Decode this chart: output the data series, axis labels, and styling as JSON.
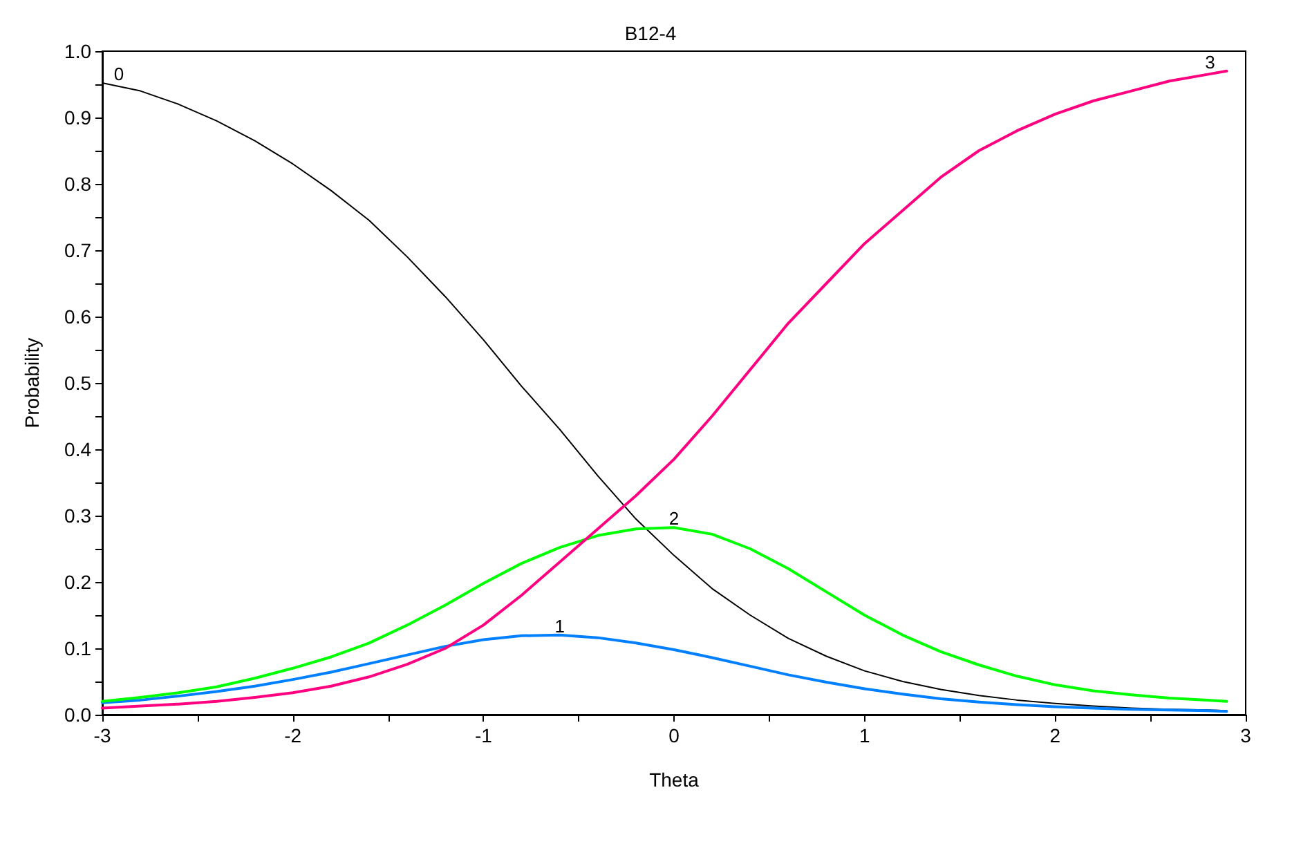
{
  "chart_data": {
    "type": "line",
    "title": "B12-4",
    "xlabel": "Theta",
    "ylabel": "Probability",
    "marker": "none",
    "line_style": "solid",
    "grid": false,
    "x": [
      -3,
      -2.8,
      -2.6,
      -2.4,
      -2.2,
      -2,
      -1.8,
      -1.6,
      -1.4,
      -1.2,
      -1,
      -0.8,
      -0.6,
      -0.4,
      -0.2,
      0,
      0.2,
      0.4,
      0.6,
      0.8,
      1,
      1.2,
      1.4,
      1.6,
      1.8,
      2,
      2.2,
      2.4,
      2.6,
      2.8,
      2.9
    ],
    "series": [
      {
        "name": "0",
        "color": "#000000",
        "values": [
          0.952,
          0.94,
          0.92,
          0.895,
          0.865,
          0.83,
          0.79,
          0.745,
          0.69,
          0.63,
          0.565,
          0.495,
          0.43,
          0.36,
          0.295,
          0.24,
          0.19,
          0.15,
          0.115,
          0.088,
          0.066,
          0.05,
          0.038,
          0.029,
          0.022,
          0.017,
          0.013,
          0.01,
          0.008,
          0.007,
          0.006
        ]
      },
      {
        "name": "1",
        "color": "#0080ff",
        "values": [
          0.018,
          0.022,
          0.028,
          0.035,
          0.043,
          0.053,
          0.064,
          0.077,
          0.09,
          0.103,
          0.113,
          0.119,
          0.12,
          0.116,
          0.108,
          0.098,
          0.086,
          0.073,
          0.06,
          0.049,
          0.039,
          0.031,
          0.024,
          0.019,
          0.015,
          0.012,
          0.01,
          0.008,
          0.007,
          0.006,
          0.005
        ]
      },
      {
        "name": "2",
        "color": "#00ff00",
        "values": [
          0.02,
          0.026,
          0.033,
          0.042,
          0.055,
          0.07,
          0.087,
          0.108,
          0.135,
          0.165,
          0.198,
          0.228,
          0.252,
          0.27,
          0.28,
          0.282,
          0.272,
          0.25,
          0.22,
          0.185,
          0.15,
          0.12,
          0.095,
          0.075,
          0.058,
          0.045,
          0.036,
          0.03,
          0.025,
          0.022,
          0.02
        ]
      },
      {
        "name": "3",
        "color": "#ff0080",
        "values": [
          0.01,
          0.013,
          0.016,
          0.02,
          0.026,
          0.033,
          0.043,
          0.057,
          0.076,
          0.1,
          0.135,
          0.18,
          0.23,
          0.28,
          0.33,
          0.385,
          0.45,
          0.52,
          0.59,
          0.65,
          0.71,
          0.76,
          0.81,
          0.85,
          0.88,
          0.905,
          0.925,
          0.94,
          0.955,
          0.965,
          0.97
        ]
      }
    ],
    "xlim": [
      -3,
      3
    ],
    "xticks": [
      -3,
      {
        "value": -2.5,
        "label": null
      },
      -2,
      {
        "value": -1.5,
        "label": null
      },
      -1,
      {
        "value": -0.5,
        "label": null
      },
      0,
      {
        "value": 0.5,
        "label": null
      },
      1,
      {
        "value": 1.5,
        "label": null
      },
      2,
      {
        "value": 2.5,
        "label": null
      },
      3
    ],
    "ylim": [
      0,
      1
    ],
    "yticks": [
      {
        "value": 0,
        "label": "0.0"
      },
      {
        "value": 0.05,
        "label": null
      },
      {
        "value": 0.1,
        "label": "0.1"
      },
      {
        "value": 0.15,
        "label": null
      },
      {
        "value": 0.2,
        "label": "0.2"
      },
      {
        "value": 0.25,
        "label": null
      },
      {
        "value": 0.3,
        "label": "0.3"
      },
      {
        "value": 0.35,
        "label": null
      },
      {
        "value": 0.4,
        "label": "0.4"
      },
      {
        "value": 0.45,
        "label": null
      },
      {
        "value": 0.5,
        "label": "0.5"
      },
      {
        "value": 0.55,
        "label": null
      },
      {
        "value": 0.6,
        "label": "0.6"
      },
      {
        "value": 0.65,
        "label": null
      },
      {
        "value": 0.7,
        "label": "0.7"
      },
      {
        "value": 0.75,
        "label": null
      },
      {
        "value": 0.8,
        "label": "0.8"
      },
      {
        "value": 0.85,
        "label": null
      },
      {
        "value": 0.9,
        "label": "0.9"
      },
      {
        "value": 0.95,
        "label": null
      },
      {
        "value": 1,
        "label": "1.0"
      }
    ]
  }
}
